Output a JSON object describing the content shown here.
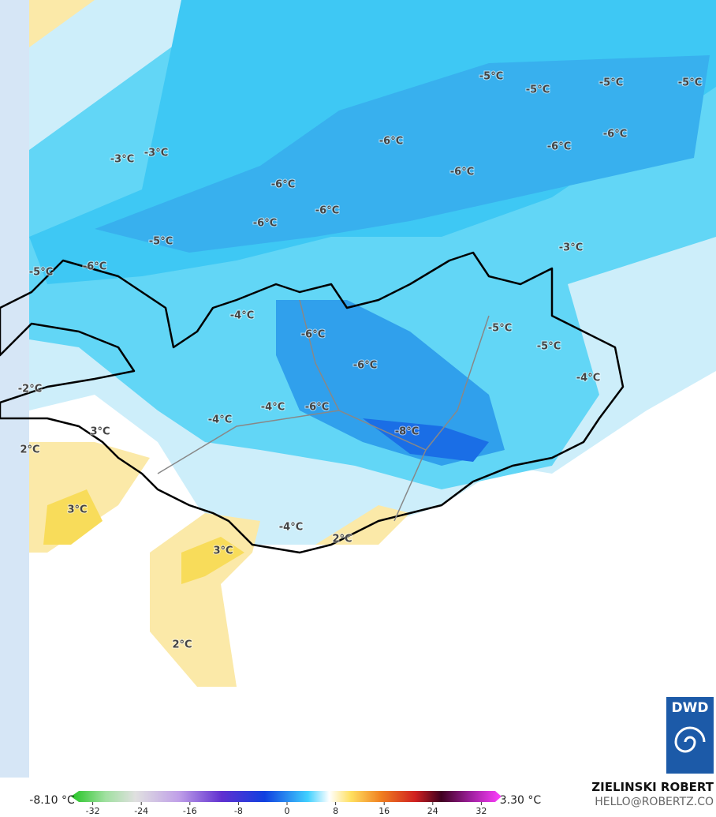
{
  "map": {
    "labels": [
      {
        "text": "-5°C"
      },
      {
        "text": "-5°C"
      },
      {
        "text": "-5°C"
      },
      {
        "text": "-5°C"
      },
      {
        "text": "-6°C"
      },
      {
        "text": "-6°C"
      },
      {
        "text": "-6°C"
      },
      {
        "text": "-6°C"
      },
      {
        "text": "-6°C"
      },
      {
        "text": "-6°C"
      },
      {
        "text": "-6°C"
      },
      {
        "text": "-3°C"
      },
      {
        "text": "-3°C"
      },
      {
        "text": "-5°C"
      },
      {
        "text": "-3°C"
      },
      {
        "text": "-5°C"
      },
      {
        "text": "-6°C"
      },
      {
        "text": "-4°C"
      },
      {
        "text": "-6°C"
      },
      {
        "text": "-5°C"
      },
      {
        "text": "-6°C"
      },
      {
        "text": "-5°C"
      },
      {
        "text": "-4°C"
      },
      {
        "text": "-2°C"
      },
      {
        "text": "-4°C"
      },
      {
        "text": "-6°C"
      },
      {
        "text": "-4°C"
      },
      {
        "text": "-8°C"
      },
      {
        "text": "3°C"
      },
      {
        "text": "2°C"
      },
      {
        "text": "3°C"
      },
      {
        "text": "-4°C"
      },
      {
        "text": "2°C"
      },
      {
        "text": "3°C"
      },
      {
        "text": "2°C"
      }
    ]
  },
  "colorbar": {
    "min_label": "-8.10 °C",
    "max_label": "3.30 °C",
    "ticks": [
      -32,
      -24,
      -16,
      -8,
      0,
      8,
      16,
      24,
      32
    ]
  },
  "credit": {
    "name": "ZIELINSKI ROBERT",
    "email": "HELLO@ROBERTZ.CO"
  },
  "logo": "DWD"
}
